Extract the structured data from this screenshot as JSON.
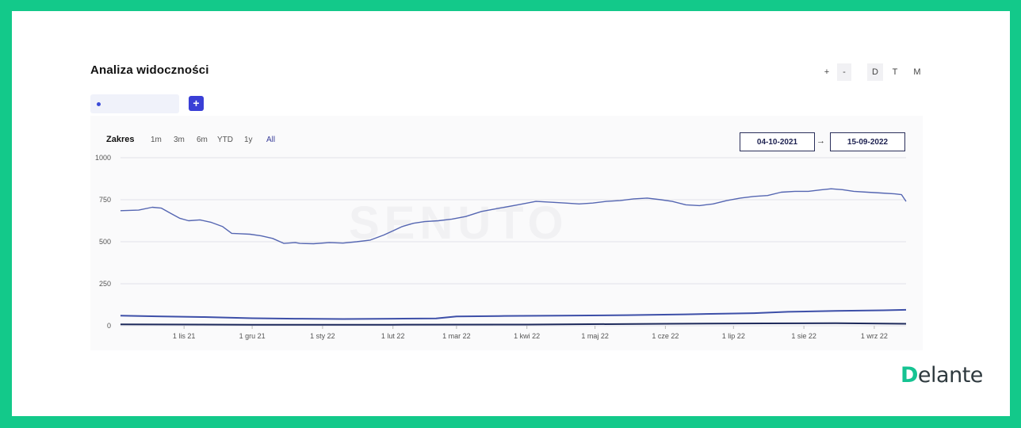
{
  "title": "Analiza widoczności",
  "zoom_controls": {
    "plus": "+",
    "minus": "-"
  },
  "period_controls": [
    "D",
    "T",
    "M"
  ],
  "add_button": "+",
  "range_label": "Zakres",
  "ranges": [
    "1m",
    "3m",
    "6m",
    "YTD",
    "1y",
    "All"
  ],
  "date_from": "04-10-2021",
  "date_arrow": "→",
  "date_to": "15-09-2022",
  "watermark": "SENUTO",
  "logo": {
    "first": "D",
    "rest": "elante"
  },
  "colors": {
    "series_main": "#5566b2",
    "series_mid": "#3d4fa8",
    "series_low": "#1e2a5c",
    "brand": "#13c98a"
  },
  "chart_data": {
    "type": "line",
    "title": "",
    "xlabel": "",
    "ylabel": "",
    "ylim": [
      0,
      1000
    ],
    "yticks": [
      0,
      250,
      500,
      750,
      1000
    ],
    "grid": true,
    "xtick_labels": [
      {
        "label": "1 lis 21",
        "date": "2021-11-01"
      },
      {
        "label": "1 gru 21",
        "date": "2021-12-01"
      },
      {
        "label": "1 sty 22",
        "date": "2022-01-01"
      },
      {
        "label": "1 lut 22",
        "date": "2022-02-01"
      },
      {
        "label": "1 mar 22",
        "date": "2022-03-01"
      },
      {
        "label": "1 kwi 22",
        "date": "2022-04-01"
      },
      {
        "label": "1 maj 22",
        "date": "2022-05-01"
      },
      {
        "label": "1 cze 22",
        "date": "2022-06-01"
      },
      {
        "label": "1 lip 22",
        "date": "2022-07-01"
      },
      {
        "label": "1 sie 22",
        "date": "2022-08-01"
      },
      {
        "label": "1 wrz 22",
        "date": "2022-09-01"
      }
    ],
    "xlim": [
      "2021-10-04",
      "2022-09-15"
    ],
    "series": [
      {
        "x": [
          "2021-10-04",
          "2021-10-12",
          "2021-10-18",
          "2021-10-22",
          "2021-10-26",
          "2021-10-30",
          "2021-11-03",
          "2021-11-08",
          "2021-11-13",
          "2021-11-18",
          "2021-11-22",
          "2021-11-25",
          "2021-11-30",
          "2021-12-05",
          "2021-12-10",
          "2021-12-15",
          "2021-12-20",
          "2021-12-22",
          "2021-12-28",
          "2022-01-04",
          "2022-01-10",
          "2022-01-16",
          "2022-01-22",
          "2022-01-28",
          "2022-02-01",
          "2022-02-05",
          "2022-02-10",
          "2022-02-15",
          "2022-02-21",
          "2022-02-27",
          "2022-03-05",
          "2022-03-12",
          "2022-03-20",
          "2022-03-28",
          "2022-04-05",
          "2022-04-12",
          "2022-04-18",
          "2022-04-24",
          "2022-04-30",
          "2022-05-06",
          "2022-05-12",
          "2022-05-18",
          "2022-05-24",
          "2022-05-30",
          "2022-06-04",
          "2022-06-10",
          "2022-06-16",
          "2022-06-22",
          "2022-06-28",
          "2022-07-04",
          "2022-07-10",
          "2022-07-16",
          "2022-07-22",
          "2022-07-28",
          "2022-08-03",
          "2022-08-08",
          "2022-08-13",
          "2022-08-18",
          "2022-08-23",
          "2022-08-29",
          "2022-09-04",
          "2022-09-10",
          "2022-09-13",
          "2022-09-15"
        ],
        "values": [
          685,
          688,
          705,
          700,
          670,
          640,
          625,
          630,
          615,
          590,
          550,
          548,
          545,
          535,
          520,
          490,
          495,
          490,
          488,
          495,
          492,
          500,
          510,
          540,
          565,
          590,
          610,
          620,
          625,
          635,
          650,
          680,
          700,
          720,
          740,
          735,
          730,
          725,
          730,
          740,
          745,
          755,
          760,
          750,
          740,
          720,
          715,
          725,
          745,
          760,
          770,
          775,
          795,
          800,
          800,
          808,
          815,
          810,
          800,
          795,
          790,
          785,
          780,
          740
        ]
      },
      {
        "x": [
          "2021-10-04",
          "2021-10-20",
          "2021-11-10",
          "2021-12-01",
          "2021-12-20",
          "2022-01-10",
          "2022-02-01",
          "2022-02-20",
          "2022-03-01",
          "2022-03-20",
          "2022-04-15",
          "2022-05-15",
          "2022-06-10",
          "2022-07-10",
          "2022-07-25",
          "2022-08-15",
          "2022-09-05",
          "2022-09-15"
        ],
        "values": [
          60,
          56,
          52,
          45,
          42,
          40,
          42,
          44,
          55,
          58,
          60,
          63,
          68,
          75,
          83,
          88,
          92,
          95
        ]
      },
      {
        "x": [
          "2021-10-04",
          "2021-12-01",
          "2022-02-01",
          "2022-04-01",
          "2022-06-01",
          "2022-07-15",
          "2022-08-15",
          "2022-09-15"
        ],
        "values": [
          8,
          6,
          6,
          7,
          12,
          14,
          15,
          12
        ]
      }
    ]
  }
}
